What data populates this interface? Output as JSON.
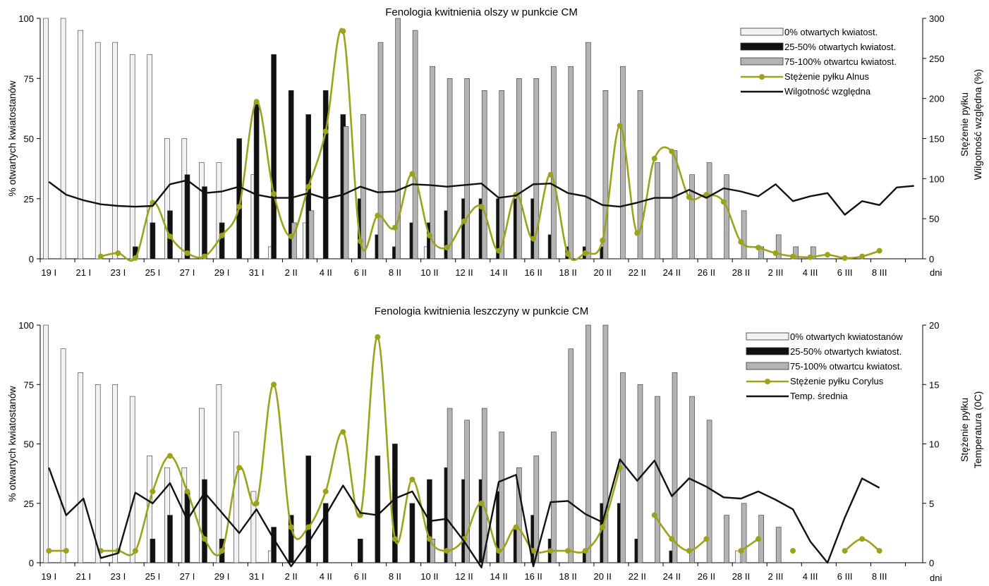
{
  "colors": {
    "light": "#f2f2f2",
    "dark": "#111111",
    "gray": "#b3b3b3",
    "green": "#9aa31c",
    "line": "#111111"
  },
  "chart_data": [
    {
      "type": "bar",
      "title": "Fenologia kwitnienia olszy w punkcie CM",
      "ylabel": "% otwartych kwiatostanów",
      "y2label_line1": "Stężenie pyłku",
      "y2label_line2": "Wilgotność względna  (%)",
      "xunit": "dni",
      "ylim": [
        0,
        100
      ],
      "y2lim": [
        0,
        300
      ],
      "yticks": [
        "0",
        "25",
        "50",
        "75",
        "100"
      ],
      "y2ticks": [
        "0",
        "50",
        "100",
        "150",
        "200",
        "250",
        "300"
      ],
      "x_labels": [
        "19 I",
        "21 I",
        "23 I",
        "25 I",
        "27 I",
        "29 I",
        "31 I",
        "2 II",
        "4 II",
        "6 II",
        "8 II",
        "10 II",
        "12 II",
        "14 II",
        "16 II",
        "18 II",
        "20 II",
        "22 II",
        "24 II",
        "26 II",
        "28 II",
        "2 III",
        "4 III",
        "6 III",
        "8 III"
      ],
      "days": 51,
      "series": [
        {
          "name": "0% otwartych kwiatost.",
          "kind": "bar",
          "color": "light",
          "values": [
            100,
            100,
            95,
            90,
            90,
            85,
            85,
            50,
            50,
            40,
            40,
            null,
            35,
            5,
            null,
            15,
            null,
            null,
            null,
            null,
            null,
            null,
            5,
            null,
            null,
            null,
            null,
            null,
            null,
            null,
            null,
            null,
            null,
            null,
            null,
            null,
            null,
            null,
            null,
            null,
            null,
            null,
            null,
            null,
            null,
            null,
            null,
            null,
            null,
            null,
            null
          ]
        },
        {
          "name": "25-50% otwartych kwiatost.",
          "kind": "bar",
          "color": "dark",
          "values": [
            null,
            null,
            null,
            null,
            null,
            5,
            15,
            20,
            35,
            30,
            15,
            50,
            65,
            85,
            70,
            60,
            70,
            60,
            25,
            10,
            5,
            15,
            15,
            20,
            25,
            25,
            25,
            25,
            25,
            10,
            5,
            5,
            5,
            null,
            null,
            null,
            null,
            null,
            null,
            null,
            null,
            null,
            null,
            null,
            null,
            null,
            null,
            null,
            null,
            null,
            null
          ]
        },
        {
          "name": "75-100% otwartcu kwiatost.",
          "kind": "bar",
          "color": "gray",
          "values": [
            null,
            null,
            null,
            null,
            null,
            null,
            null,
            null,
            null,
            null,
            null,
            null,
            null,
            null,
            15,
            20,
            null,
            55,
            60,
            90,
            100,
            95,
            80,
            75,
            75,
            70,
            70,
            75,
            75,
            80,
            80,
            90,
            70,
            80,
            70,
            40,
            45,
            35,
            40,
            35,
            20,
            5,
            10,
            5,
            5,
            null,
            null,
            null,
            null,
            null,
            null
          ]
        },
        {
          "name": "Stężenie pyłku Alnus",
          "kind": "pollen",
          "axis": "right",
          "color": "green",
          "values": [
            null,
            null,
            null,
            3,
            7,
            1,
            70,
            28,
            7,
            3,
            29,
            65,
            196,
            81,
            28,
            90,
            159,
            284,
            22,
            54,
            39,
            106,
            29,
            14,
            47,
            65,
            10,
            80,
            25,
            105,
            6,
            7,
            23,
            166,
            32,
            125,
            134,
            77,
            80,
            71,
            21,
            14,
            7,
            3,
            2,
            5,
            1,
            3,
            10,
            null,
            null
          ]
        },
        {
          "name": "Wilgotność względna",
          "kind": "line",
          "axis": "right",
          "color": "line",
          "values": [
            96,
            80,
            73,
            68,
            66,
            65,
            66,
            93,
            98,
            82,
            84,
            90,
            80,
            76,
            76,
            82,
            75,
            80,
            90,
            83,
            84,
            93,
            92,
            90,
            92,
            94,
            76,
            79,
            93,
            94,
            82,
            78,
            67,
            65,
            70,
            76,
            76,
            86,
            76,
            88,
            84,
            78,
            93,
            72,
            78,
            82,
            55,
            72,
            67,
            89,
            91
          ]
        }
      ]
    },
    {
      "type": "bar",
      "title": "Fenologia kwitnienia leszczyny w punkcie CM",
      "ylabel": "% otwartych kwiatostanów",
      "y2label_line1": "Stężenie pyłku",
      "y2label_line2": "Temperatura  (0C)",
      "xunit": "dni",
      "ylim": [
        0,
        100
      ],
      "y2lim": [
        0,
        20
      ],
      "yticks": [
        "0",
        "25",
        "50",
        "75",
        "100"
      ],
      "y2ticks": [
        "0",
        "5",
        "10",
        "15",
        "20"
      ],
      "x_labels": [
        "19 I",
        "21 I",
        "23 I",
        "25 I",
        "27 I",
        "29 I",
        "31 I",
        "2 II",
        "4 II",
        "6 II",
        "8 II",
        "10 II",
        "12 II",
        "14 II",
        "16 II",
        "18 II",
        "20 II",
        "22 II",
        "24 II",
        "26 II",
        "28 II",
        "2 III",
        "4 III",
        "6 III",
        "8 III"
      ],
      "days": 51,
      "series": [
        {
          "name": "0% otwartych kwiatostanów",
          "kind": "bar",
          "color": "light",
          "values": [
            100,
            90,
            80,
            75,
            75,
            70,
            45,
            40,
            40,
            65,
            75,
            55,
            30,
            5,
            null,
            null,
            null,
            null,
            null,
            null,
            null,
            null,
            null,
            null,
            null,
            null,
            null,
            null,
            null,
            null,
            null,
            null,
            null,
            null,
            null,
            null,
            null,
            null,
            null,
            null,
            5,
            null,
            null,
            null,
            null,
            null,
            null,
            null,
            null,
            null,
            null
          ]
        },
        {
          "name": "25-50% otwartych kwiatost.",
          "kind": "bar",
          "color": "dark",
          "values": [
            null,
            null,
            null,
            null,
            null,
            null,
            10,
            20,
            30,
            35,
            10,
            null,
            null,
            15,
            20,
            45,
            25,
            null,
            10,
            45,
            50,
            25,
            35,
            40,
            35,
            35,
            30,
            15,
            20,
            10,
            null,
            5,
            25,
            25,
            10,
            null,
            5,
            null,
            null,
            null,
            null,
            null,
            null,
            null,
            null,
            null,
            null,
            null,
            null,
            null,
            null
          ]
        },
        {
          "name": "75-100% otwartcu kwiatost.",
          "kind": "bar",
          "color": "gray",
          "values": [
            null,
            null,
            null,
            null,
            null,
            null,
            null,
            null,
            null,
            null,
            null,
            null,
            null,
            null,
            null,
            null,
            null,
            null,
            null,
            null,
            null,
            null,
            10,
            65,
            60,
            65,
            55,
            40,
            45,
            55,
            90,
            100,
            100,
            80,
            75,
            70,
            80,
            70,
            60,
            20,
            25,
            20,
            15,
            null,
            null,
            null,
            null,
            null,
            null,
            null,
            null
          ]
        },
        {
          "name": "Stężenie pyłku Corylus",
          "kind": "pollen",
          "axis": "right",
          "color": "green",
          "values": [
            1,
            1,
            null,
            1,
            1,
            1,
            6,
            9,
            6,
            2,
            1,
            8,
            5,
            15,
            3,
            3,
            6,
            11,
            4,
            19,
            2,
            7,
            2,
            1,
            2,
            5,
            1,
            3,
            1,
            1,
            1,
            1,
            3,
            8,
            null,
            4,
            2,
            1,
            2,
            null,
            1,
            2,
            null,
            1,
            null,
            null,
            1,
            2,
            1,
            null,
            null
          ]
        },
        {
          "name": "Temp. średnia",
          "kind": "line",
          "axis": "right",
          "color": "line",
          "values": [
            8,
            4,
            5.4,
            0.4,
            0.8,
            5.9,
            5,
            6.7,
            3.6,
            5.9,
            4.2,
            2.5,
            4.5,
            2,
            -0.3,
            1.7,
            4,
            6.5,
            4.2,
            4,
            5.4,
            6,
            3.5,
            3.7,
            1.8,
            -0.4,
            6.8,
            7.4,
            -0.3,
            5.1,
            5.2,
            4.1,
            3.4,
            8.7,
            6.9,
            8.6,
            5.6,
            7.1,
            6.4,
            5.5,
            5.4,
            6,
            5.3,
            4.5,
            1.8,
            0,
            3.8,
            7.1,
            6.3,
            null,
            null
          ]
        }
      ]
    }
  ]
}
